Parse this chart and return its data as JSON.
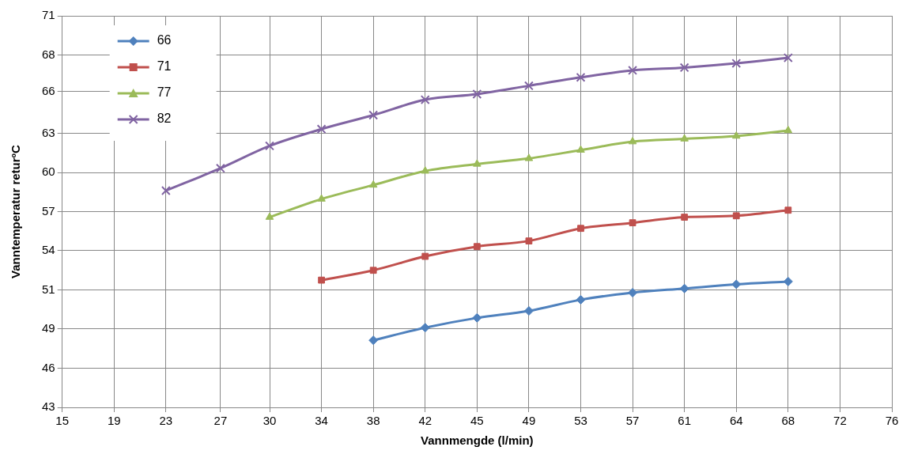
{
  "chart_data": {
    "type": "line",
    "xlabel": "Vannmengde (l/min)",
    "ylabel": "Vanntemperatur returºC",
    "xlim": [
      15,
      75.8
    ],
    "xticks": [
      {
        "value": 15,
        "label": "15"
      },
      {
        "value": 18.8,
        "label": "19"
      },
      {
        "value": 22.6,
        "label": "23"
      },
      {
        "value": 26.6,
        "label": "27"
      },
      {
        "value": 30.2,
        "label": "30"
      },
      {
        "value": 34,
        "label": "34"
      },
      {
        "value": 37.8,
        "label": "38"
      },
      {
        "value": 41.6,
        "label": "42"
      },
      {
        "value": 45.4,
        "label": "45"
      },
      {
        "value": 49.2,
        "label": "49"
      },
      {
        "value": 53,
        "label": "53"
      },
      {
        "value": 56.8,
        "label": "57"
      },
      {
        "value": 60.6,
        "label": "61"
      },
      {
        "value": 64.4,
        "label": "64"
      },
      {
        "value": 68.2,
        "label": "68"
      },
      {
        "value": 72,
        "label": "72"
      },
      {
        "value": 75.8,
        "label": "76"
      }
    ],
    "ylim": [
      43,
      71
    ],
    "yticks": [
      43,
      {
        "value": 45.8,
        "label": "46"
      },
      {
        "value": 48.6,
        "label": "49"
      },
      {
        "value": 51.4,
        "label": "51"
      },
      {
        "value": 54.2,
        "label": "54"
      },
      57,
      {
        "value": 59.8,
        "label": "60"
      },
      {
        "value": 62.6,
        "label": "63"
      },
      {
        "value": 65.6,
        "label": "66"
      },
      {
        "value": 68.2,
        "label": "68"
      },
      71
    ],
    "grid": true,
    "legend": "top left",
    "series": [
      {
        "name": "66",
        "color": "#4f81bd",
        "marker": "diamond",
        "x": [
          37.8,
          41.6,
          45.4,
          49.2,
          53,
          56.8,
          60.6,
          64.4,
          68.2
        ],
        "values": [
          47.8,
          48.7,
          49.4,
          49.9,
          50.7,
          51.2,
          51.5,
          51.8,
          52.0
        ]
      },
      {
        "name": "71",
        "color": "#c0504d",
        "marker": "square",
        "x": [
          34,
          37.8,
          41.6,
          45.4,
          49.2,
          53,
          56.8,
          60.6,
          64.4,
          68.2
        ],
        "values": [
          52.1,
          52.8,
          53.8,
          54.5,
          54.9,
          55.8,
          56.2,
          56.6,
          56.7,
          57.1
        ]
      },
      {
        "name": "77",
        "color": "#9bbb59",
        "marker": "triangle",
        "x": [
          30.2,
          34,
          37.8,
          41.6,
          45.4,
          49.2,
          53,
          56.8,
          60.6,
          64.4,
          68.2
        ],
        "values": [
          56.6,
          57.9,
          58.9,
          59.9,
          60.4,
          60.8,
          61.4,
          62.0,
          62.2,
          62.4,
          62.8
        ]
      },
      {
        "name": "82",
        "color": "#8064a2",
        "marker": "cross",
        "x": [
          22.6,
          26.6,
          30.2,
          34,
          37.8,
          41.6,
          45.4,
          49.2,
          53,
          56.8,
          60.6,
          64.4,
          68.2
        ],
        "values": [
          58.5,
          60.1,
          61.7,
          62.9,
          63.9,
          65.0,
          65.4,
          66.0,
          66.6,
          67.1,
          67.3,
          67.6,
          68.0
        ]
      }
    ]
  }
}
